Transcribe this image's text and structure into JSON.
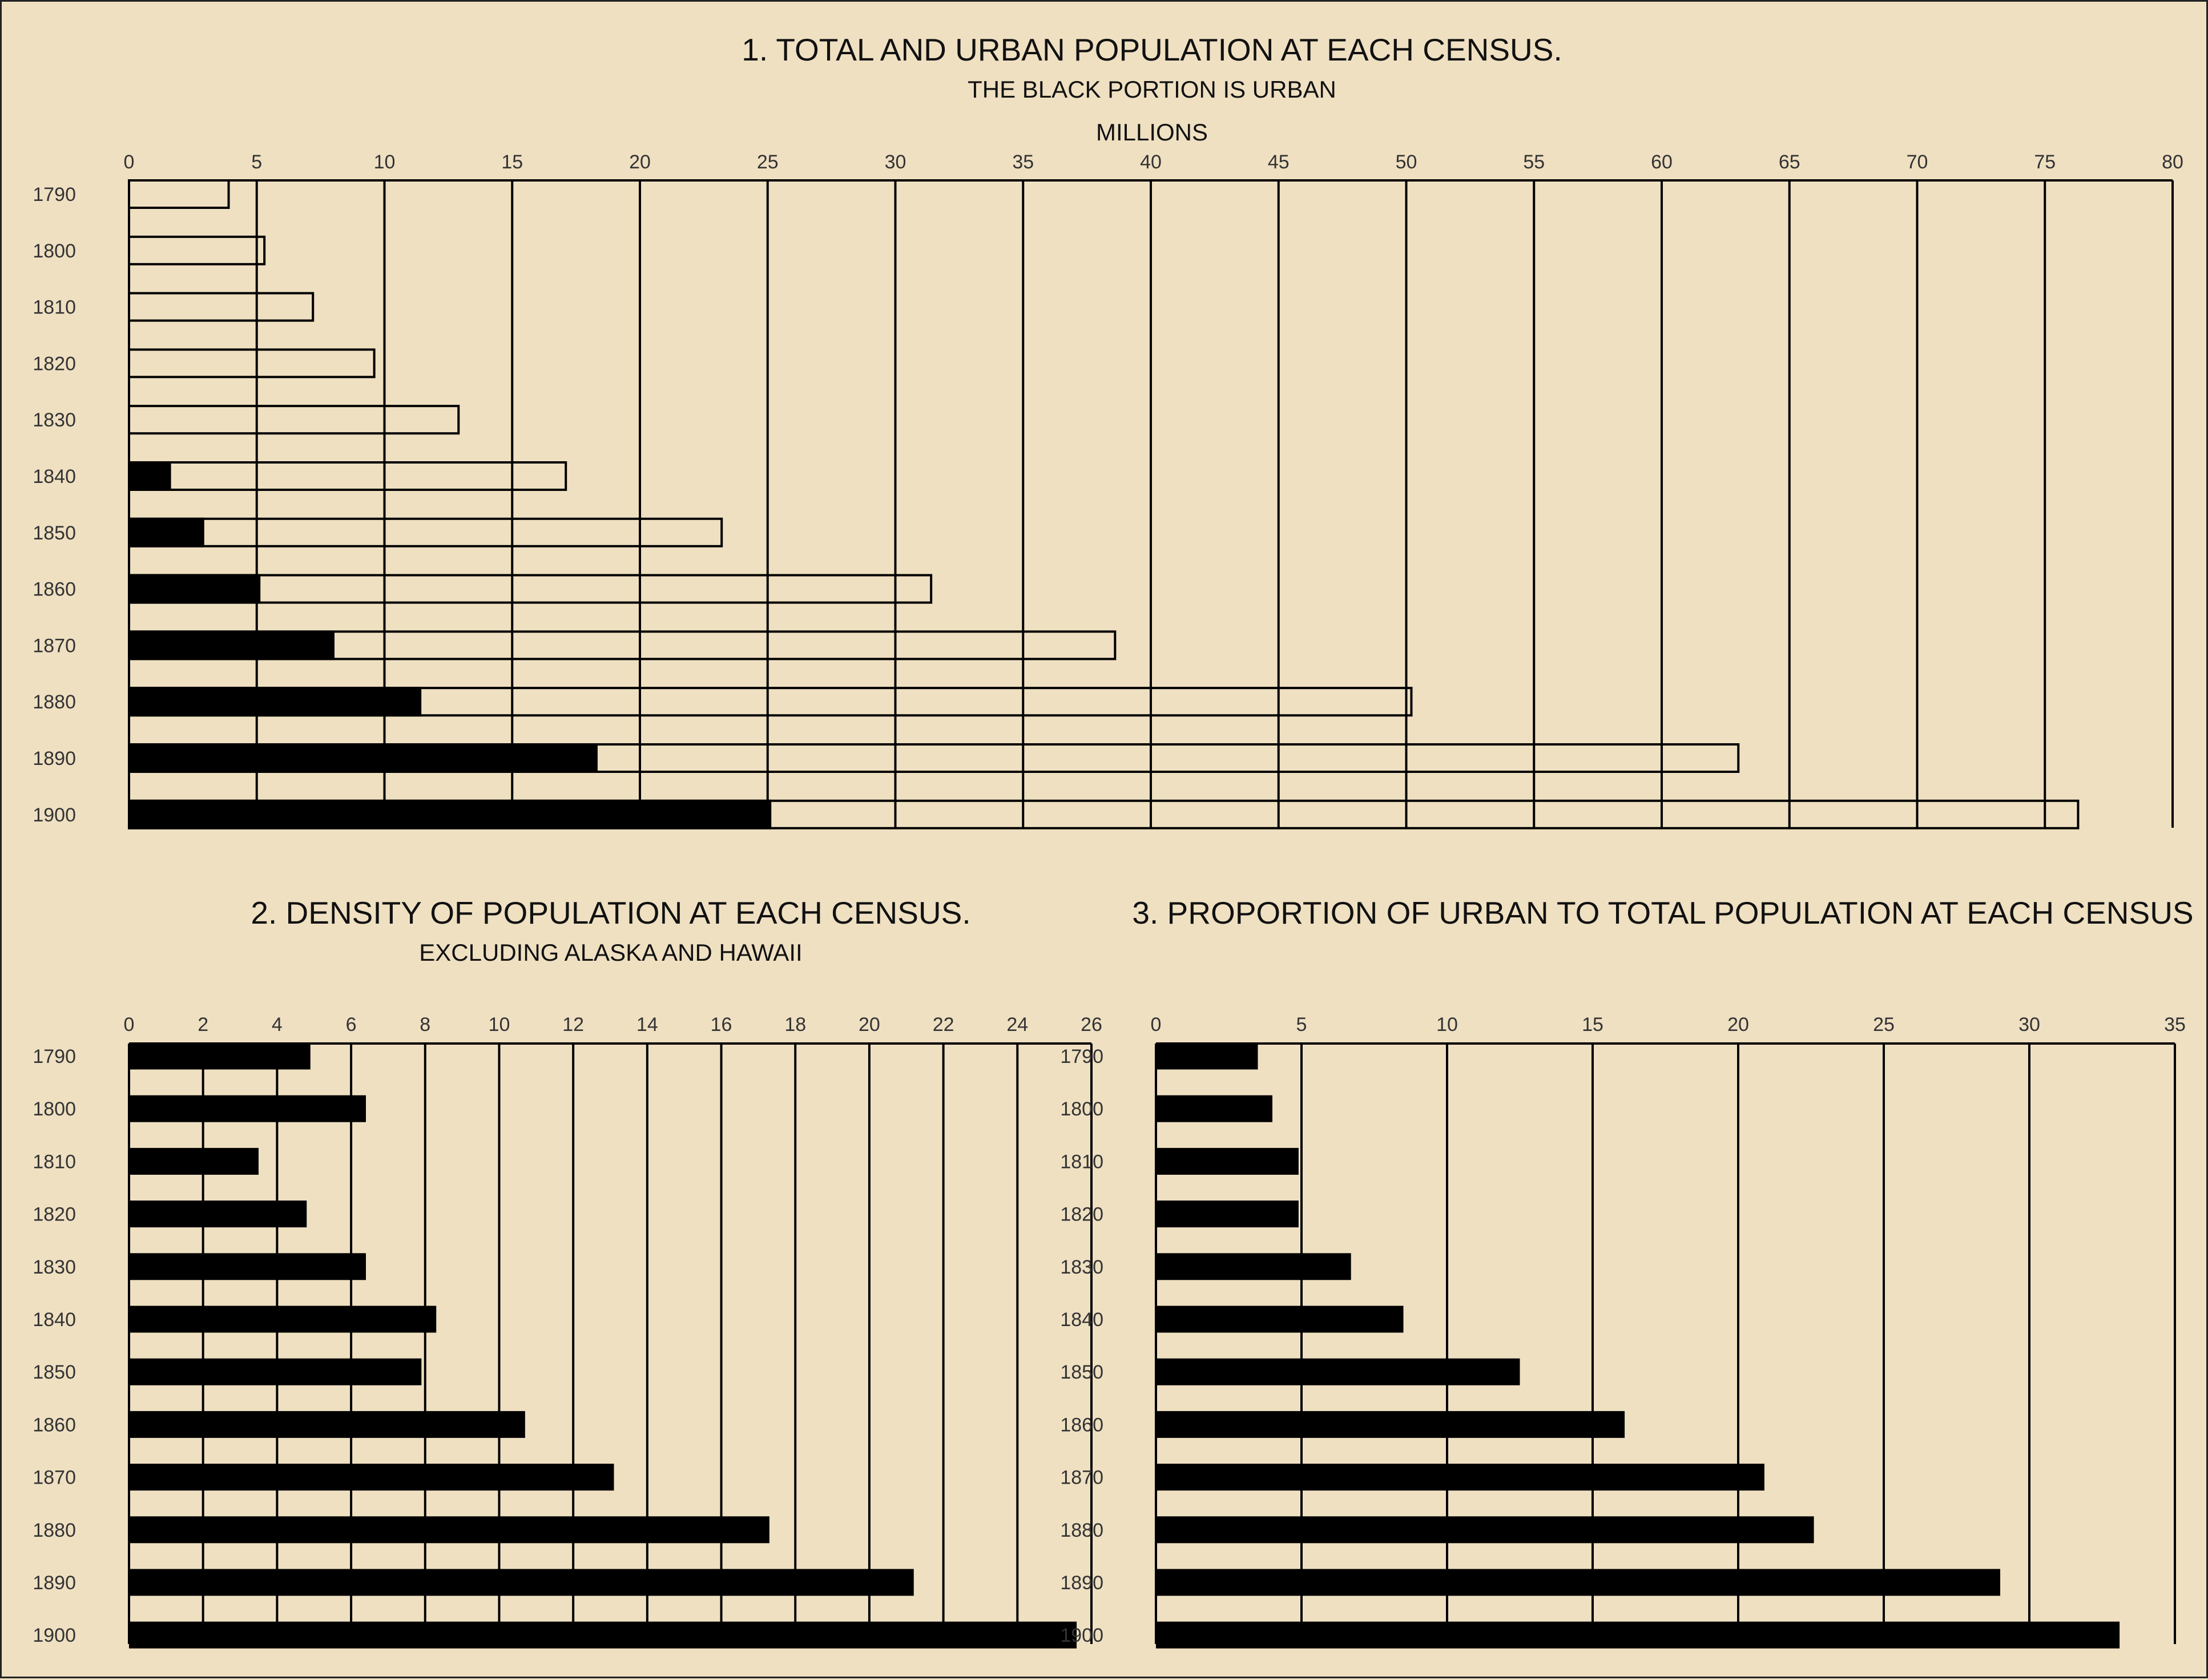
{
  "chart_data": [
    {
      "id": "chart1",
      "type": "bar",
      "orientation": "horizontal",
      "title": "1. TOTAL AND URBAN POPULATION AT EACH CENSUS.",
      "subtitle": "THE BLACK PORTION IS URBAN",
      "unit_label": "MILLIONS",
      "categories": [
        "1790",
        "1800",
        "1810",
        "1820",
        "1830",
        "1840",
        "1850",
        "1860",
        "1870",
        "1880",
        "1890",
        "1900"
      ],
      "series": [
        {
          "name": "Total",
          "values": [
            3.9,
            5.3,
            7.2,
            9.6,
            12.9,
            17.1,
            23.2,
            31.4,
            38.6,
            50.2,
            63.0,
            76.3
          ],
          "color": "#efe0c2"
        },
        {
          "name": "Urban",
          "values": [
            0.0,
            0.0,
            0.0,
            0.0,
            0.0,
            1.6,
            2.9,
            5.1,
            8.0,
            11.4,
            18.3,
            25.1
          ],
          "color": "#000000"
        }
      ],
      "xlim": [
        0,
        80
      ],
      "xticks": [
        0,
        5,
        10,
        15,
        20,
        25,
        30,
        35,
        40,
        45,
        50,
        55,
        60,
        65,
        70,
        75,
        80
      ],
      "grid": true
    },
    {
      "id": "chart2",
      "type": "bar",
      "orientation": "horizontal",
      "title": "2. DENSITY OF POPULATION AT EACH CENSUS.",
      "subtitle": "EXCLUDING ALASKA AND HAWAII",
      "categories": [
        "1790",
        "1800",
        "1810",
        "1820",
        "1830",
        "1840",
        "1850",
        "1860",
        "1870",
        "1880",
        "1890",
        "1900"
      ],
      "values": [
        4.9,
        6.4,
        3.5,
        4.8,
        6.4,
        8.3,
        7.9,
        10.7,
        13.1,
        17.3,
        21.2,
        25.6
      ],
      "xlim": [
        0,
        26
      ],
      "xticks": [
        0,
        2,
        4,
        6,
        8,
        10,
        12,
        14,
        16,
        18,
        20,
        22,
        24,
        26
      ],
      "grid": true
    },
    {
      "id": "chart3",
      "type": "bar",
      "orientation": "horizontal",
      "title": "3. PROPORTION OF URBAN TO TOTAL POPULATION AT EACH CENSUS",
      "categories": [
        "1790",
        "1800",
        "1810",
        "1820",
        "1830",
        "1840",
        "1850",
        "1860",
        "1870",
        "1880",
        "1890",
        "1900"
      ],
      "values": [
        3.5,
        4.0,
        4.9,
        4.9,
        6.7,
        8.5,
        12.5,
        16.1,
        20.9,
        22.6,
        29.0,
        33.1
      ],
      "xlim": [
        0,
        35
      ],
      "xticks": [
        0,
        5,
        10,
        15,
        20,
        25,
        30,
        35
      ],
      "grid": true
    }
  ]
}
